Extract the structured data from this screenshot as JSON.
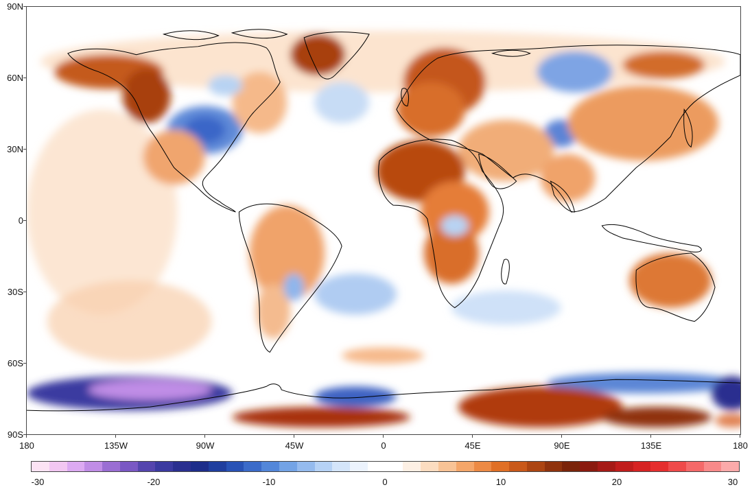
{
  "map": {
    "lat_labels": [
      "90N",
      "60N",
      "30N",
      "0",
      "30S",
      "60S",
      "90S"
    ],
    "lon_labels": [
      "180",
      "135W",
      "90W",
      "45W",
      "0",
      "45E",
      "90E",
      "135E",
      "180"
    ]
  },
  "colorbar": {
    "labels": [
      "-30",
      "-20",
      "-10",
      "0",
      "10",
      "20",
      "30"
    ],
    "range": [
      -30,
      30
    ],
    "colors": [
      "#fce3f4",
      "#f2c7f2",
      "#dcaaf2",
      "#c08de6",
      "#9a6ed3",
      "#7a58c4",
      "#5545ae",
      "#3b3aa0",
      "#2a2f8f",
      "#1d2d8a",
      "#1f3e9e",
      "#2852b5",
      "#3b6bc9",
      "#5387d9",
      "#73a3e5",
      "#95bbee",
      "#b6d2f5",
      "#d4e5fa",
      "#ecf3fd",
      "#ffffff",
      "#ffffff",
      "#fdf0e4",
      "#fbdcc0",
      "#f8c396",
      "#f4a66a",
      "#ec8a45",
      "#e07026",
      "#c9591a",
      "#ac4512",
      "#8f330d",
      "#7a240a",
      "#8a1a0f",
      "#a51a16",
      "#c01d1c",
      "#d62323",
      "#e52e2e",
      "#ef4a4a",
      "#f46969",
      "#f88a8a",
      "#fbaaaa"
    ]
  }
}
